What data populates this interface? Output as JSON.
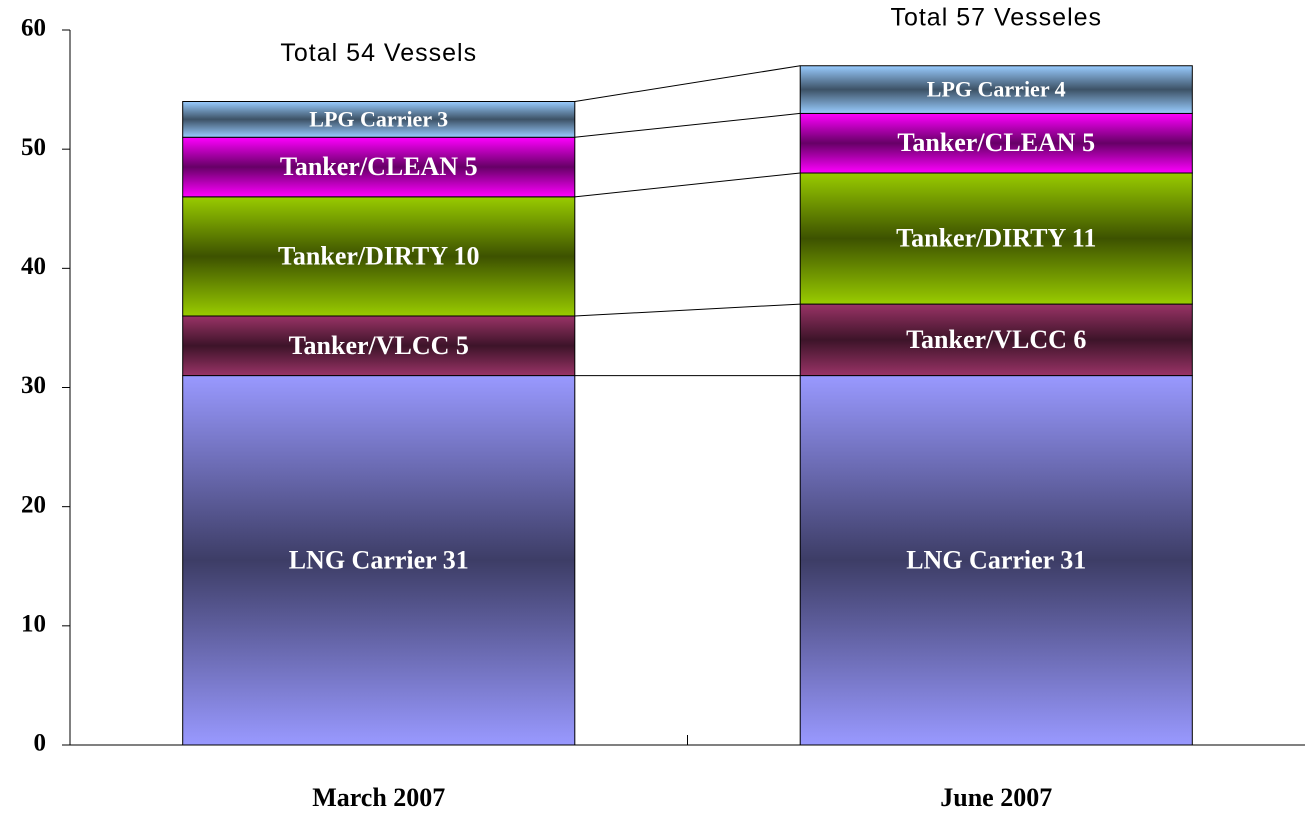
{
  "chart_data": {
    "type": "stacked-bar",
    "categories": [
      "March 2007",
      "June 2007"
    ],
    "series": [
      {
        "color": "#9999ff",
        "values": [
          31,
          31
        ],
        "value_labels": [
          "LNG Carrier 31",
          "LNG Carrier 31"
        ]
      },
      {
        "color": "#993366",
        "values": [
          5,
          6
        ],
        "value_labels": [
          "Tanker/VLCC 5",
          "Tanker/VLCC 6"
        ]
      },
      {
        "color": "#99cc00",
        "values": [
          10,
          11
        ],
        "value_labels": [
          "Tanker/DIRTY 10",
          "Tanker/DIRTY 11"
        ]
      },
      {
        "color": "#ff00ff",
        "values": [
          5,
          5
        ],
        "value_labels": [
          "Tanker/CLEAN 5",
          "Tanker/CLEAN 5"
        ]
      },
      {
        "color": "#99ccff",
        "values": [
          3,
          4
        ],
        "value_labels": [
          "LPG Carrier 3",
          "LPG Carrier 4"
        ]
      }
    ],
    "annotations": [
      "Total 54 Vessels",
      "Total 57 Vesseles"
    ],
    "ylim": [
      0,
      60
    ],
    "yticks": [
      0,
      10,
      20,
      30,
      40,
      50,
      60
    ]
  }
}
